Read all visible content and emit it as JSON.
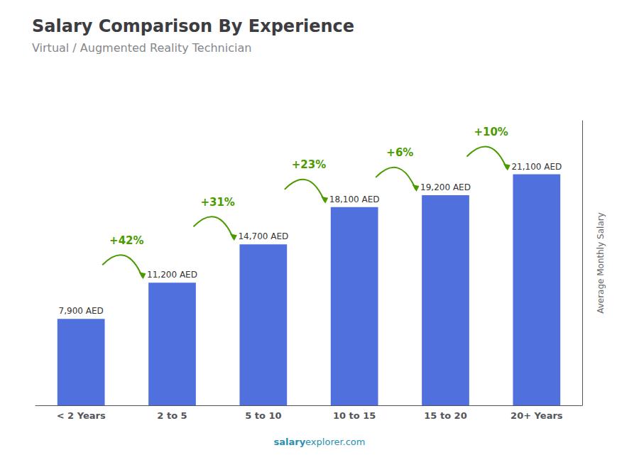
{
  "chart_data": {
    "type": "bar",
    "title": "Salary Comparison By Experience",
    "subtitle": "Virtual / Augmented Reality Technician",
    "categories": [
      "< 2 Years",
      "2 to 5",
      "5 to 10",
      "10 to 15",
      "15 to 20",
      "20+ Years"
    ],
    "values": [
      7900,
      11200,
      14700,
      18100,
      19200,
      21100
    ],
    "value_labels": [
      "7,900 AED",
      "11,200 AED",
      "14,700 AED",
      "18,100 AED",
      "19,200 AED",
      "21,100 AED"
    ],
    "data_labels": true,
    "annotations": [
      "+42%",
      "+31%",
      "+23%",
      "+6%",
      "+10%"
    ],
    "watermark": [
      "salary",
      "explorer.com"
    ],
    "ylabel": "Average Monthly Salary",
    "ylim": [
      0,
      26000
    ],
    "tick_labels": "x",
    "grid": false
  }
}
